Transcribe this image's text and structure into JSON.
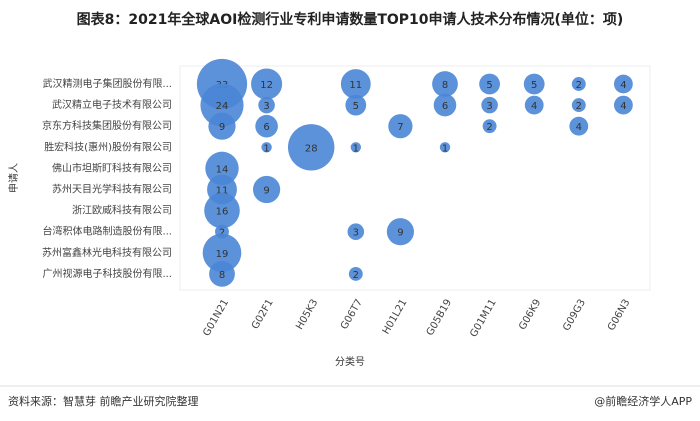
{
  "chart_data": {
    "type": "bubble",
    "title": "图表8：2021年全球AOI检测行业专利申请数量TOP10申请人技术分布情况(单位：项)",
    "x_label": "分类号",
    "y_label": "申请人",
    "categories": [
      "G01N21",
      "G02F1",
      "H05K3",
      "G06T7",
      "H01L21",
      "G05B19",
      "G01M11",
      "G06K9",
      "G09G3",
      "G06N3"
    ],
    "color": "#4a86d6",
    "series": [
      {
        "name": "武汉精测电子集团股份有限...",
        "values": [
          33,
          12,
          null,
          11,
          null,
          8,
          5,
          5,
          2,
          4
        ]
      },
      {
        "name": "武汉精立电子技术有限公司",
        "values": [
          24,
          3,
          null,
          5,
          null,
          6,
          3,
          4,
          2,
          4
        ]
      },
      {
        "name": "京东方科技集团股份有限公司",
        "values": [
          9,
          6,
          null,
          null,
          7,
          null,
          2,
          null,
          4,
          null
        ]
      },
      {
        "name": "胜宏科技(惠州)股份有限公司",
        "values": [
          null,
          1,
          28,
          1,
          null,
          1,
          null,
          null,
          null,
          null
        ]
      },
      {
        "name": "佛山市坦斯盯科技有限公司",
        "values": [
          14,
          null,
          null,
          null,
          null,
          null,
          null,
          null,
          null,
          null
        ]
      },
      {
        "name": "苏州天目光学科技有限公司",
        "values": [
          11,
          9,
          null,
          null,
          null,
          null,
          null,
          null,
          null,
          null
        ]
      },
      {
        "name": "浙江欧威科技有限公司",
        "values": [
          16,
          null,
          null,
          null,
          null,
          null,
          null,
          null,
          null,
          null
        ]
      },
      {
        "name": "台湾积体电路制造股份有限...",
        "values": [
          2,
          null,
          null,
          3,
          9,
          null,
          null,
          null,
          null,
          null
        ]
      },
      {
        "name": "苏州富鑫林光电科技有限公司",
        "values": [
          19,
          null,
          null,
          null,
          null,
          null,
          null,
          null,
          null,
          null
        ]
      },
      {
        "name": "广州视源电子科技股份有限...",
        "values": [
          8,
          null,
          null,
          2,
          null,
          null,
          null,
          null,
          null,
          null
        ]
      }
    ]
  },
  "source": "资料来源：智慧芽 前瞻产业研究院整理",
  "brand": "@前瞻经济学人APP"
}
